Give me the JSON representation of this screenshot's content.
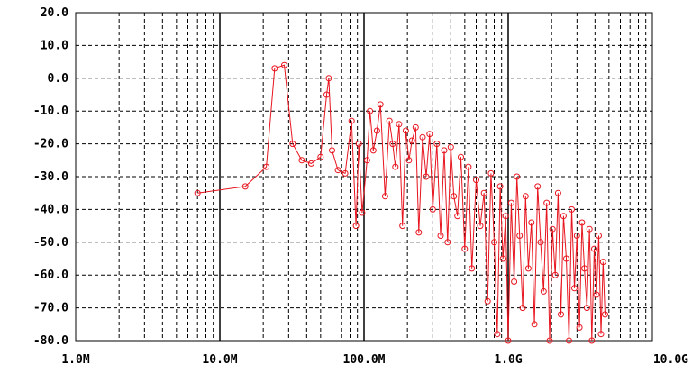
{
  "chart_data": {
    "type": "line",
    "title": "",
    "xlabel": "",
    "ylabel": "",
    "x_scale": "log",
    "xlim": [
      1000000,
      10000000000
    ],
    "ylim": [
      -80,
      20
    ],
    "grid": true,
    "x_tick_values": [
      1000000,
      10000000,
      100000000,
      1000000000,
      10000000000
    ],
    "x_tick_labels": [
      "1.0M",
      "10.0M",
      "100.0M",
      "1.0G",
      "10.0G"
    ],
    "y_tick_values": [
      20,
      10,
      0,
      -10,
      -20,
      -30,
      -40,
      -50,
      -60,
      -70,
      -80
    ],
    "y_tick_labels": [
      "20.0",
      "10.0",
      "0.0",
      "-10.0",
      "-20.0",
      "-30.0",
      "-40.0",
      "-50.0",
      "-60.0",
      "-70.0",
      "-80.0"
    ],
    "series": [
      {
        "color": "#e8141e",
        "marker": "circle",
        "x": [
          7000000,
          15000000,
          21000000,
          24000000,
          28000000,
          32000000,
          37000000,
          43000000,
          50000000,
          55000000,
          57000000,
          60000000,
          66000000,
          74000000,
          82000000,
          88000000,
          92000000,
          97000000,
          105000000,
          110000000,
          116000000,
          123000000,
          130000000,
          140000000,
          150000000,
          158000000,
          165000000,
          175000000,
          185000000,
          195000000,
          205000000,
          215000000,
          228000000,
          240000000,
          255000000,
          270000000,
          285000000,
          300000000,
          320000000,
          340000000,
          360000000,
          380000000,
          400000000,
          420000000,
          445000000,
          470000000,
          500000000,
          530000000,
          560000000,
          600000000,
          640000000,
          680000000,
          720000000,
          760000000,
          800000000,
          840000000,
          880000000,
          920000000,
          960000000,
          1000000000,
          1050000000,
          1100000000,
          1150000000,
          1200000000,
          1260000000,
          1320000000,
          1380000000,
          1450000000,
          1520000000,
          1600000000,
          1680000000,
          1760000000,
          1850000000,
          1940000000,
          2030000000,
          2120000000,
          2220000000,
          2320000000,
          2420000000,
          2530000000,
          2640000000,
          2760000000,
          2880000000,
          3000000000,
          3120000000,
          3250000000,
          3380000000,
          3520000000,
          3660000000,
          3800000000,
          3950000000,
          4100000000,
          4250000000,
          4400000000,
          4550000000,
          4700000000
        ],
        "y": [
          -35,
          -33,
          -27,
          3,
          4,
          -20,
          -25,
          -26,
          -24,
          -5,
          0,
          -22,
          -28,
          -29,
          -13,
          -45,
          -20,
          -41,
          -25,
          -10,
          -22,
          -16,
          -8,
          -36,
          -13,
          -20,
          -27,
          -14,
          -45,
          -16,
          -25,
          -19,
          -15,
          -47,
          -18,
          -30,
          -17,
          -40,
          -20,
          -48,
          -22,
          -50,
          -21,
          -36,
          -42,
          -24,
          -52,
          -27,
          -58,
          -31,
          -45,
          -35,
          -68,
          -29,
          -50,
          -78,
          -33,
          -55,
          -42,
          -80,
          -38,
          -62,
          -30,
          -48,
          -70,
          -36,
          -58,
          -44,
          -75,
          -33,
          -50,
          -65,
          -38,
          -80,
          -46,
          -60,
          -35,
          -72,
          -42,
          -55,
          -80,
          -40,
          -64,
          -48,
          -76,
          -44,
          -58,
          -70,
          -46,
          -80,
          -52,
          -66,
          -48,
          -78,
          -56,
          -72
        ]
      }
    ]
  }
}
